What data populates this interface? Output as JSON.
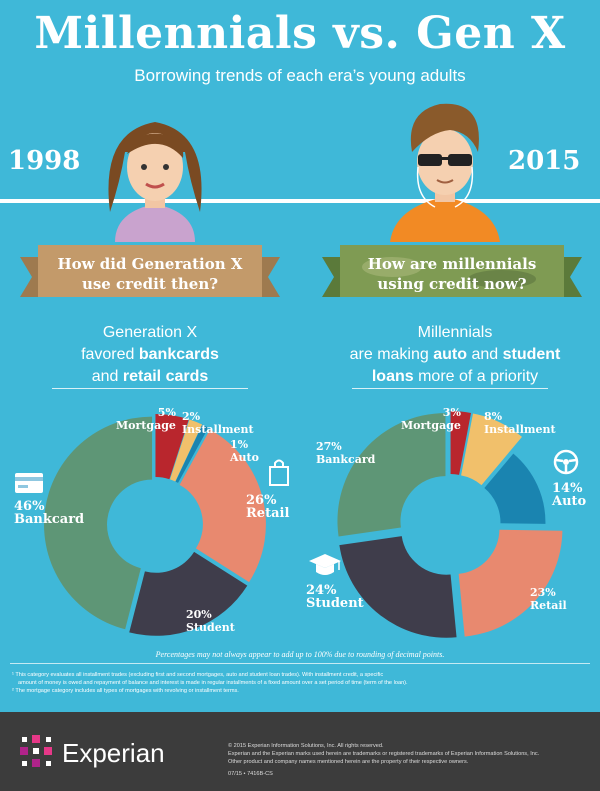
{
  "header": {
    "title": "Millennials vs. Gen X",
    "subtitle": "Borrowing trends of each era’s young adults"
  },
  "left": {
    "year": "1998",
    "ribbon": [
      "How did Generation X",
      "use credit then?"
    ],
    "desc_line1": "Generation X",
    "desc_line2a": "favored ",
    "desc_line2b": "bankcards",
    "desc_line3a": "and ",
    "desc_line3b": "retail cards"
  },
  "right": {
    "year": "2015",
    "ribbon": [
      "How are millennials",
      "using credit now?"
    ],
    "desc_line1": "Millennials",
    "desc_line2a": "are making ",
    "desc_line2b": "auto",
    "desc_line2c": " and ",
    "desc_line2d": "student",
    "desc_line3a": "loans",
    "desc_line3b": " more of a priority"
  },
  "chart_data": [
    {
      "type": "pie",
      "name": "Generation X (1998)",
      "slices": [
        {
          "label": "Mortgage",
          "value": 5,
          "pct": "5%",
          "color": "#b9262d"
        },
        {
          "label": "Installment",
          "value": 2,
          "pct": "2%",
          "color": "#f1c06b"
        },
        {
          "label": "Auto",
          "value": 1,
          "pct": "1%",
          "color": "#1a84b0"
        },
        {
          "label": "Retail",
          "value": 26,
          "pct": "26%",
          "color": "#e8896f"
        },
        {
          "label": "Student",
          "value": 20,
          "pct": "20%",
          "color": "#3f3d4b"
        },
        {
          "label": "Bankcard",
          "value": 46,
          "pct": "46%",
          "color": "#5e9676"
        }
      ]
    },
    {
      "type": "pie",
      "name": "Millennials (2015)",
      "slices": [
        {
          "label": "Mortgage",
          "value": 3,
          "pct": "3%",
          "color": "#b9262d"
        },
        {
          "label": "Installment",
          "value": 8,
          "pct": "8%",
          "color": "#f1c06b"
        },
        {
          "label": "Auto",
          "value": 14,
          "pct": "14%",
          "color": "#1a84b0"
        },
        {
          "label": "Retail",
          "value": 23,
          "pct": "23%",
          "color": "#e8896f"
        },
        {
          "label": "Student",
          "value": 24,
          "pct": "24%",
          "color": "#3f3d4b"
        },
        {
          "label": "Bankcard",
          "value": 27,
          "pct": "27%",
          "color": "#5e9676"
        }
      ]
    }
  ],
  "note": "Percentages may not always appear to add up to 100% due to rounding of decimal points.",
  "footnotes": [
    "¹ This category evaluates all installment trades (excluding first and second mortgages, auto and student loan trades). With installment credit, a specific",
    "amount of money is owed and repayment of balance and interest is made in regular installments of a fixed amount over a set period of time (term of the loan).",
    "² The mortgage category includes all types of mortgages with revolving or installment terms."
  ],
  "footer": {
    "brand": "Experian",
    "copy": [
      "© 2015 Experian Information Solutions, Inc. All rights reserved.",
      "Experian and the Experian marks used herein are trademarks or registered trademarks of Experian Information Solutions, Inc.",
      "Other product and company names mentioned herein are the property of their respective owners.",
      "07/15 • 7416B-CS"
    ]
  }
}
